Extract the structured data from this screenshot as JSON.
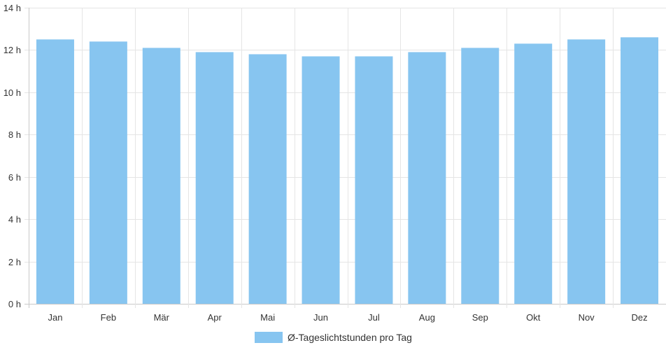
{
  "chart_data": {
    "type": "bar",
    "categories": [
      "Jan",
      "Feb",
      "Mär",
      "Apr",
      "Mai",
      "Jun",
      "Jul",
      "Aug",
      "Sep",
      "Okt",
      "Nov",
      "Dez"
    ],
    "series": [
      {
        "name": "Ø-Tageslichtstunden pro Tag",
        "values": [
          12.5,
          12.4,
          12.1,
          11.9,
          11.8,
          11.7,
          11.7,
          11.9,
          12.1,
          12.3,
          12.5,
          12.6
        ],
        "color": "#87c5f0"
      }
    ],
    "ylim": [
      0,
      14
    ],
    "yticks": [
      0,
      2,
      4,
      6,
      8,
      10,
      12,
      14
    ],
    "ytick_unit": "h",
    "grid": true,
    "legend_position": "bottom",
    "grid_color": "#e5e5e5",
    "axis_color": "#c9c9c9"
  }
}
